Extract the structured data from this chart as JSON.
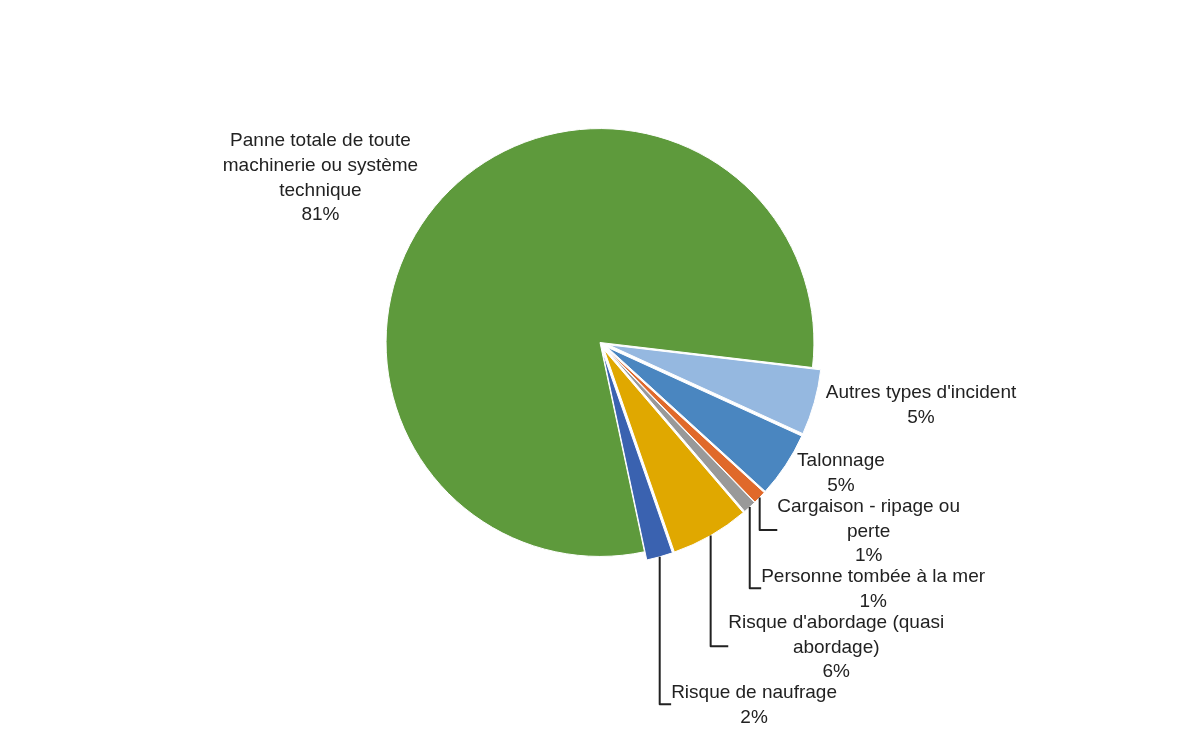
{
  "chart_data": {
    "type": "pie",
    "categories": [
      "Panne totale de toute machinerie ou système technique",
      "Autres types d'incident",
      "Talonnage",
      "Cargaison - ripage ou perte",
      "Personne tombée à la mer",
      "Risque d'abordage (quasi abordage)",
      "Risque de naufrage"
    ],
    "values": [
      81,
      5,
      5,
      1,
      1,
      6,
      2
    ],
    "value_labels": [
      "81%",
      "5%",
      "5%",
      "1%",
      "1%",
      "6%",
      "2%"
    ],
    "colors": [
      "#5e9a3c",
      "#95b8e0",
      "#4a86c0",
      "#e0692a",
      "#999999",
      "#e0a800",
      "#3a62b0"
    ],
    "legend": false
  }
}
